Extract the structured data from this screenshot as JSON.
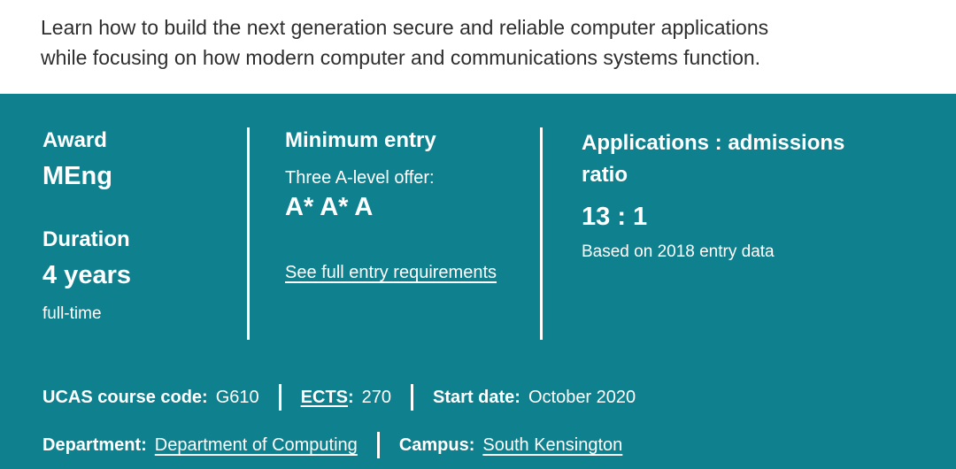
{
  "colors": {
    "band_teal": "#0f818e",
    "intro_text": "#2e2e2e",
    "band_text": "#ffffff"
  },
  "intro": {
    "lines": [
      "Learn how to build the next generation secure and reliable computer applications",
      "while focusing on how modern computer and communications systems function."
    ]
  },
  "columns": {
    "award": {
      "label": "Award",
      "value": "MEng",
      "duration_label": "Duration",
      "duration_value": "4 years",
      "duration_note": "full-time"
    },
    "entry": {
      "label": "Minimum entry",
      "offer_intro": "Three A-level offer:",
      "offer": "A* A* A",
      "link": "See full entry requirements"
    },
    "ratio": {
      "label": "Applications : admissions ratio",
      "value": "13 : 1",
      "note": "Based on 2018 entry data"
    }
  },
  "meta": {
    "ucas": {
      "label": "UCAS course code:",
      "value": "G610"
    },
    "ects": {
      "label": "ECTS",
      "suffix": ":",
      "value": "270"
    },
    "start_date": {
      "label": "Start date:",
      "value": "October 2020"
    },
    "department": {
      "label": "Department:",
      "value": "Department of Computing"
    },
    "campus": {
      "label": "Campus:",
      "value": "South Kensington"
    }
  }
}
